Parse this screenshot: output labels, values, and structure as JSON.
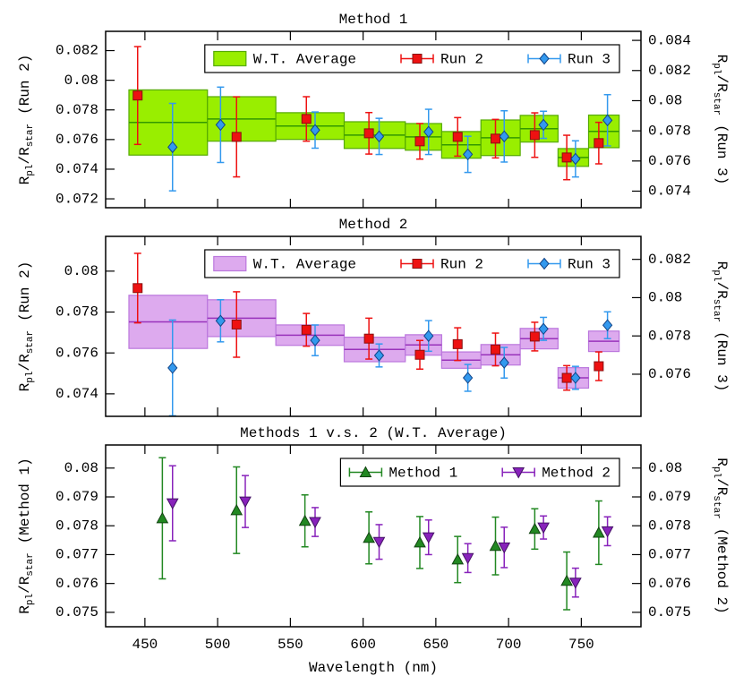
{
  "chart_data": [
    {
      "type": "errorbar",
      "title": "Method 1",
      "ylabel": [
        "R",
        "pl",
        "/R",
        "star",
        "(Run 2)"
      ],
      "y2label": [
        "R",
        "pl",
        "/R",
        "star",
        "(Run 3)"
      ],
      "xlim": [
        423,
        791
      ],
      "xticks": [
        450,
        500,
        550,
        600,
        650,
        700,
        750
      ],
      "xticklabels": false,
      "ylim": [
        0.0714,
        0.0833
      ],
      "yticks": [
        0.072,
        0.074,
        0.076,
        0.078,
        0.08,
        0.082
      ],
      "y2lim": [
        0.0729,
        0.0846
      ],
      "y2ticks": [
        0.074,
        0.076,
        0.078,
        0.08,
        0.082,
        0.084
      ],
      "legend": "upper right",
      "series": [
        {
          "name": "W.T. Average",
          "color": "#99ee00",
          "edgecolor": "#55aa00",
          "linecolor": "#339900",
          "bins": [
            439,
            493,
            540,
            587,
            629,
            654,
            681,
            708,
            734,
            755,
            776
          ],
          "values": [
            0.07715,
            0.07739,
            0.07691,
            0.0763,
            0.07618,
            0.07564,
            0.07612,
            0.07673,
            0.07479,
            0.07655
          ],
          "errors": [
            0.0022,
            0.0015,
            0.0009,
            0.0009,
            0.0009,
            0.0009,
            0.0012,
            0.0009,
            0.0006,
            0.0011
          ]
        },
        {
          "name": "Run 2",
          "color": "#ee1111",
          "edgecolor": "#881111",
          "marker": "square",
          "x": [
            445,
            513,
            561,
            604,
            639,
            665,
            691,
            718,
            740,
            762
          ],
          "values": [
            0.07897,
            0.07618,
            0.07739,
            0.07642,
            0.07588,
            0.07618,
            0.07606,
            0.0763,
            0.07479,
            0.07576
          ],
          "errors": [
            0.0033,
            0.0027,
            0.0015,
            0.0014,
            0.0012,
            0.0013,
            0.0013,
            0.0015,
            0.0015,
            0.0014
          ]
        },
        {
          "name": "Run 3",
          "color": "#3399ee",
          "edgecolor": "#114488",
          "marker": "diamond",
          "axis": "y2",
          "x": [
            469,
            502,
            567,
            611,
            645,
            672,
            697,
            724,
            746,
            768
          ],
          "values": [
            0.07692,
            0.0784,
            0.07805,
            0.07763,
            0.07793,
            0.07644,
            0.07763,
            0.0784,
            0.07614,
            0.0787
          ],
          "errors": [
            0.0029,
            0.0025,
            0.0012,
            0.0012,
            0.0015,
            0.0012,
            0.0017,
            0.0009,
            0.0012,
            0.0017
          ]
        }
      ]
    },
    {
      "type": "errorbar",
      "title": "Method 2",
      "ylabel": [
        "R",
        "pl",
        "/R",
        "star",
        "(Run 2)"
      ],
      "y2label": [
        "R",
        "pl",
        "/R",
        "star",
        "(Run 3)"
      ],
      "xlim": [
        423,
        791
      ],
      "xticks": [
        450,
        500,
        550,
        600,
        650,
        700,
        750
      ],
      "xticklabels": false,
      "ylim": [
        0.0729,
        0.0817
      ],
      "yticks": [
        0.074,
        0.076,
        0.078,
        0.08
      ],
      "y2lim": [
        0.0738,
        0.0832
      ],
      "y2ticks": [
        0.076,
        0.078,
        0.08,
        0.082
      ],
      "legend": "upper right",
      "series": [
        {
          "name": "W.T. Average",
          "color": "#ddaaee",
          "edgecolor": "#bb77dd",
          "linecolor": "#9933bb",
          "bins": [
            439,
            493,
            540,
            587,
            629,
            654,
            681,
            708,
            734,
            755,
            776
          ],
          "values": [
            0.07752,
            0.0777,
            0.07687,
            0.07617,
            0.07639,
            0.07565,
            0.07591,
            0.0767,
            0.07478,
            0.07657
          ],
          "errors": [
            0.0013,
            0.0009,
            0.0005,
            0.0006,
            0.0005,
            0.0004,
            0.0005,
            0.0005,
            0.0005,
            0.0005
          ]
        },
        {
          "name": "Run 2",
          "color": "#ee1111",
          "edgecolor": "#881111",
          "marker": "square",
          "x": [
            445,
            513,
            561,
            604,
            639,
            665,
            691,
            718,
            740,
            762
          ],
          "values": [
            0.07917,
            0.07739,
            0.07713,
            0.0767,
            0.07591,
            0.07643,
            0.07617,
            0.0768,
            0.07478,
            0.07535
          ],
          "errors": [
            0.0017,
            0.0016,
            0.0008,
            0.001,
            0.0007,
            0.0008,
            0.0008,
            0.0007,
            0.0006,
            0.0007
          ]
        },
        {
          "name": "Run 3",
          "color": "#3399ee",
          "edgecolor": "#114488",
          "marker": "diamond",
          "axis": "y2",
          "x": [
            469,
            502,
            567,
            611,
            645,
            672,
            697,
            724,
            746,
            768
          ],
          "values": [
            0.07633,
            0.07879,
            0.07777,
            0.07698,
            0.078,
            0.07581,
            0.0766,
            0.07837,
            0.07581,
            0.07856
          ],
          "errors": [
            0.0025,
            0.0011,
            0.0008,
            0.0006,
            0.0008,
            0.0007,
            0.0008,
            0.0006,
            0.0006,
            0.0007
          ]
        }
      ]
    },
    {
      "type": "errorbar",
      "title": "Methods 1 v.s. 2 (W.T. Average)",
      "ylabel": [
        "R",
        "pl",
        "/R",
        "star",
        "(Method 1)"
      ],
      "y2label": [
        "R",
        "pl",
        "/R",
        "star",
        "(Method 2)"
      ],
      "xlabel": "Wavelength (nm)",
      "xlim": [
        423,
        791
      ],
      "xticks": [
        450,
        500,
        550,
        600,
        650,
        700,
        750
      ],
      "xticklabels": true,
      "ylim": [
        0.0745,
        0.0808
      ],
      "yticks": [
        0.075,
        0.076,
        0.077,
        0.078,
        0.079,
        0.08
      ],
      "y2lim": [
        0.0745,
        0.0808
      ],
      "y2ticks": [
        0.075,
        0.076,
        0.077,
        0.078,
        0.079,
        0.08
      ],
      "legend": "upper right",
      "series": [
        {
          "name": "Method 1",
          "color": "#228822",
          "edgecolor": "#114411",
          "marker": "triangle-up",
          "x": [
            462,
            513,
            560,
            604,
            639,
            665,
            691,
            718,
            740,
            762
          ],
          "values": [
            0.07826,
            0.07854,
            0.07817,
            0.07758,
            0.07742,
            0.07683,
            0.0773,
            0.07789,
            0.07609,
            0.07776
          ],
          "errors": [
            0.0021,
            0.0015,
            0.0009,
            0.0009,
            0.0009,
            0.0008,
            0.001,
            0.0007,
            0.001,
            0.0011
          ]
        },
        {
          "name": "Method 2",
          "color": "#8822bb",
          "edgecolor": "#441166",
          "marker": "triangle-down",
          "axis": "y2",
          "x": [
            469,
            519,
            567,
            611,
            645,
            672,
            697,
            724,
            746,
            768
          ],
          "values": [
            0.07878,
            0.07884,
            0.07813,
            0.07744,
            0.0776,
            0.07688,
            0.07725,
            0.07794,
            0.07603,
            0.07781
          ],
          "errors": [
            0.0013,
            0.0009,
            0.0005,
            0.0006,
            0.0006,
            0.0005,
            0.0007,
            0.0004,
            0.0005,
            0.0005
          ]
        }
      ]
    }
  ]
}
